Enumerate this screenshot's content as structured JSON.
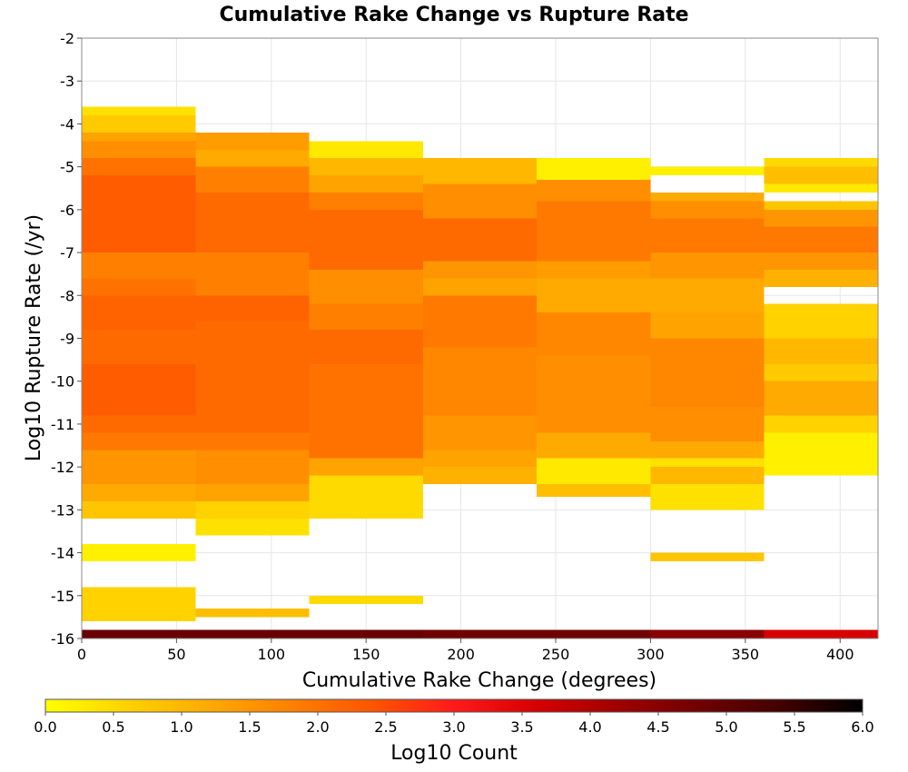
{
  "chart_data": {
    "type": "heatmap",
    "title": "Cumulative Rake Change vs Rupture Rate",
    "xlabel": "Cumulative Rake Change (degrees)",
    "ylabel": "Log10 Rupture Rate (/yr)",
    "xlim": [
      0,
      420
    ],
    "ylim": [
      -16,
      -2
    ],
    "x_ticks": [
      0,
      50,
      100,
      150,
      200,
      250,
      300,
      350,
      400
    ],
    "y_ticks": [
      -2,
      -3,
      -4,
      -5,
      -6,
      -7,
      -8,
      -9,
      -10,
      -11,
      -12,
      -13,
      -14,
      -15,
      -16
    ],
    "x_bin_width": 60,
    "y_bin_width": 0.2,
    "grid": true,
    "legend": "bottom",
    "colorbar": {
      "label": "Log10 Count",
      "range": [
        0,
        6
      ],
      "ticks": [
        "0.0",
        "0.5",
        "1.0",
        "1.5",
        "2.0",
        "2.5",
        "3.0",
        "3.5",
        "4.0",
        "4.5",
        "5.0",
        "5.5",
        "6.0"
      ],
      "colors": [
        "#ffff00",
        "#ffd200",
        "#ffaa00",
        "#ff8000",
        "#ff5500",
        "#ff1a1a",
        "#d60000",
        "#a00000",
        "#700000",
        "#420000",
        "#000000"
      ]
    },
    "columns": [
      {
        "x0": 0,
        "x1": 60,
        "segments": [
          {
            "y0": -13.2,
            "y1": -12.8,
            "v": 0.8
          },
          {
            "y0": -12.8,
            "y1": -12.4,
            "v": 1.2
          },
          {
            "y0": -12.4,
            "y1": -11.6,
            "v": 1.5
          },
          {
            "y0": -11.6,
            "y1": -11.2,
            "v": 1.9
          },
          {
            "y0": -11.2,
            "y1": -10.8,
            "v": 2.1
          },
          {
            "y0": -10.8,
            "y1": -9.6,
            "v": 2.3
          },
          {
            "y0": -9.6,
            "y1": -8.8,
            "v": 2.1
          },
          {
            "y0": -8.8,
            "y1": -8.0,
            "v": 2.2
          },
          {
            "y0": -8.0,
            "y1": -7.6,
            "v": 2.0
          },
          {
            "y0": -7.6,
            "y1": -7.0,
            "v": 1.8
          },
          {
            "y0": -7.0,
            "y1": -5.2,
            "v": 2.3
          },
          {
            "y0": -5.2,
            "y1": -4.8,
            "v": 2.0
          },
          {
            "y0": -4.8,
            "y1": -4.4,
            "v": 1.6
          },
          {
            "y0": -4.4,
            "y1": -4.2,
            "v": 1.3
          },
          {
            "y0": -4.2,
            "y1": -3.8,
            "v": 0.7
          },
          {
            "y0": -3.8,
            "y1": -3.6,
            "v": 0.4
          },
          {
            "y0": -14.2,
            "y1": -13.8,
            "v": 0.2
          },
          {
            "y0": -15.6,
            "y1": -14.8,
            "v": 0.6
          }
        ]
      },
      {
        "x0": 60,
        "x1": 120,
        "segments": [
          {
            "y0": -13.6,
            "y1": -13.2,
            "v": 0.4
          },
          {
            "y0": -13.2,
            "y1": -12.8,
            "v": 0.6
          },
          {
            "y0": -12.8,
            "y1": -12.4,
            "v": 1.3
          },
          {
            "y0": -12.4,
            "y1": -11.6,
            "v": 1.6
          },
          {
            "y0": -11.6,
            "y1": -11.2,
            "v": 1.9
          },
          {
            "y0": -11.2,
            "y1": -8.6,
            "v": 2.1
          },
          {
            "y0": -8.6,
            "y1": -8.0,
            "v": 2.2
          },
          {
            "y0": -8.0,
            "y1": -7.0,
            "v": 1.8
          },
          {
            "y0": -7.0,
            "y1": -5.6,
            "v": 2.1
          },
          {
            "y0": -5.6,
            "y1": -5.0,
            "v": 1.8
          },
          {
            "y0": -5.0,
            "y1": -4.6,
            "v": 1.2
          },
          {
            "y0": -4.6,
            "y1": -4.2,
            "v": 1.4
          },
          {
            "y0": -15.5,
            "y1": -15.3,
            "v": 0.9
          }
        ]
      },
      {
        "x0": 120,
        "x1": 180,
        "segments": [
          {
            "y0": -13.2,
            "y1": -12.2,
            "v": 0.5
          },
          {
            "y0": -12.2,
            "y1": -11.8,
            "v": 1.3
          },
          {
            "y0": -11.8,
            "y1": -9.6,
            "v": 2.0
          },
          {
            "y0": -9.6,
            "y1": -8.8,
            "v": 2.1
          },
          {
            "y0": -8.8,
            "y1": -8.2,
            "v": 1.8
          },
          {
            "y0": -8.2,
            "y1": -7.4,
            "v": 1.6
          },
          {
            "y0": -7.4,
            "y1": -6.0,
            "v": 2.1
          },
          {
            "y0": -6.0,
            "y1": -5.6,
            "v": 1.8
          },
          {
            "y0": -5.6,
            "y1": -5.2,
            "v": 1.3
          },
          {
            "y0": -5.2,
            "y1": -4.8,
            "v": 1.0
          },
          {
            "y0": -4.8,
            "y1": -4.4,
            "v": 0.3
          },
          {
            "y0": -15.2,
            "y1": -15.0,
            "v": 0.5
          }
        ]
      },
      {
        "x0": 180,
        "x1": 240,
        "segments": [
          {
            "y0": -12.4,
            "y1": -12.0,
            "v": 1.1
          },
          {
            "y0": -12.0,
            "y1": -11.6,
            "v": 1.3
          },
          {
            "y0": -11.6,
            "y1": -10.8,
            "v": 1.5
          },
          {
            "y0": -10.8,
            "y1": -9.2,
            "v": 1.7
          },
          {
            "y0": -9.2,
            "y1": -8.0,
            "v": 1.9
          },
          {
            "y0": -8.0,
            "y1": -7.6,
            "v": 1.3
          },
          {
            "y0": -7.6,
            "y1": -7.2,
            "v": 1.5
          },
          {
            "y0": -7.2,
            "y1": -6.2,
            "v": 2.1
          },
          {
            "y0": -6.2,
            "y1": -5.4,
            "v": 1.6
          },
          {
            "y0": -5.4,
            "y1": -4.8,
            "v": 1.0
          }
        ]
      },
      {
        "x0": 240,
        "x1": 300,
        "segments": [
          {
            "y0": -12.7,
            "y1": -12.4,
            "v": 0.9
          },
          {
            "y0": -12.4,
            "y1": -11.8,
            "v": 0.3
          },
          {
            "y0": -11.8,
            "y1": -11.2,
            "v": 1.2
          },
          {
            "y0": -11.2,
            "y1": -9.4,
            "v": 1.6
          },
          {
            "y0": -9.4,
            "y1": -8.4,
            "v": 1.7
          },
          {
            "y0": -8.4,
            "y1": -7.6,
            "v": 1.2
          },
          {
            "y0": -7.6,
            "y1": -7.2,
            "v": 1.4
          },
          {
            "y0": -7.2,
            "y1": -5.8,
            "v": 1.9
          },
          {
            "y0": -5.8,
            "y1": -5.3,
            "v": 1.6
          },
          {
            "y0": -5.3,
            "y1": -4.8,
            "v": 0.2
          }
        ]
      },
      {
        "x0": 300,
        "x1": 360,
        "segments": [
          {
            "y0": -13.0,
            "y1": -12.4,
            "v": 0.4
          },
          {
            "y0": -12.4,
            "y1": -12.0,
            "v": 1.0
          },
          {
            "y0": -12.0,
            "y1": -11.8,
            "v": 0.4
          },
          {
            "y0": -11.8,
            "y1": -11.4,
            "v": 1.2
          },
          {
            "y0": -11.4,
            "y1": -10.6,
            "v": 1.6
          },
          {
            "y0": -10.6,
            "y1": -9.0,
            "v": 1.7
          },
          {
            "y0": -9.0,
            "y1": -8.4,
            "v": 1.3
          },
          {
            "y0": -8.4,
            "y1": -7.6,
            "v": 1.2
          },
          {
            "y0": -7.6,
            "y1": -7.0,
            "v": 1.5
          },
          {
            "y0": -7.0,
            "y1": -6.2,
            "v": 1.9
          },
          {
            "y0": -6.2,
            "y1": -5.8,
            "v": 1.6
          },
          {
            "y0": -5.8,
            "y1": -5.6,
            "v": 1.2
          },
          {
            "y0": -5.2,
            "y1": -5.0,
            "v": 0.2
          },
          {
            "y0": -14.2,
            "y1": -14.0,
            "v": 0.8
          }
        ]
      },
      {
        "x0": 360,
        "x1": 420,
        "segments": [
          {
            "y0": -12.2,
            "y1": -11.2,
            "v": 0.2
          },
          {
            "y0": -11.2,
            "y1": -10.8,
            "v": 0.6
          },
          {
            "y0": -10.8,
            "y1": -10.0,
            "v": 1.2
          },
          {
            "y0": -10.0,
            "y1": -9.6,
            "v": 0.7
          },
          {
            "y0": -9.6,
            "y1": -9.0,
            "v": 1.0
          },
          {
            "y0": -9.0,
            "y1": -8.2,
            "v": 0.6
          },
          {
            "y0": -7.8,
            "y1": -7.4,
            "v": 1.1
          },
          {
            "y0": -7.4,
            "y1": -7.0,
            "v": 1.5
          },
          {
            "y0": -7.0,
            "y1": -6.4,
            "v": 1.9
          },
          {
            "y0": -6.4,
            "y1": -6.0,
            "v": 1.5
          },
          {
            "y0": -6.0,
            "y1": -5.8,
            "v": 0.8
          },
          {
            "y0": -5.6,
            "y1": -5.4,
            "v": 0.3
          },
          {
            "y0": -5.4,
            "y1": -5.0,
            "v": 0.9
          },
          {
            "y0": -5.0,
            "y1": -4.8,
            "v": 0.5
          }
        ]
      }
    ],
    "bottom_row": {
      "y0": -16.0,
      "y1": -15.8,
      "values": [
        4.9,
        4.9,
        4.9,
        4.8,
        4.8,
        4.5,
        3.6
      ]
    }
  }
}
